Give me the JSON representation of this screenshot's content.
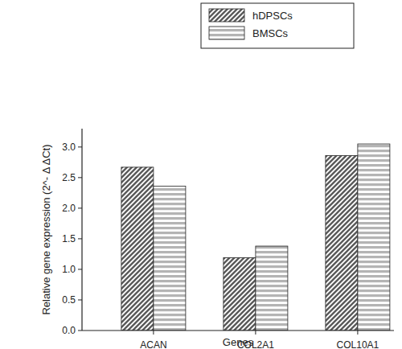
{
  "chart_data": {
    "type": "bar",
    "x_label": "Genes",
    "y_label": "Relative gene expression (2^- Δ ΔCt)",
    "categories": [
      "ACAN",
      "COL2A1",
      "COL10A1"
    ],
    "series": [
      {
        "name": "hDPSCs",
        "color": "#5a5a5a",
        "values": [
          2.67,
          1.19,
          2.86
        ]
      },
      {
        "name": "BMSCs",
        "color": "#b4b4b4",
        "values": [
          2.36,
          1.38,
          3.05
        ]
      }
    ],
    "ylim": [
      0,
      3.3
    ],
    "yticks": [
      {
        "value": 0,
        "label": "0.0"
      },
      {
        "value": 0.5,
        "label": "0.5"
      },
      {
        "value": 1,
        "label": "1.0"
      },
      {
        "value": 1.5,
        "label": "1.5"
      },
      {
        "value": 2,
        "label": "2.0"
      },
      {
        "value": 2.5,
        "label": "2.5"
      },
      {
        "value": 3,
        "label": "3.0"
      }
    ],
    "legend": "top-right",
    "grid": false
  }
}
